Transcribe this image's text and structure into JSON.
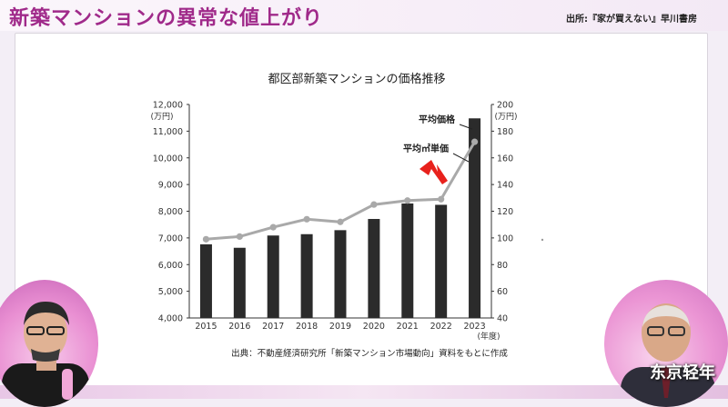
{
  "header": {
    "title": "新築マンションの異常な値上がり",
    "source_top": "出所:『家が買えない』早川書房"
  },
  "watermark": "东京轻年",
  "chart_data": {
    "type": "bar",
    "title": "都区部新築マンションの価格推移",
    "categories": [
      "2015",
      "2016",
      "2017",
      "2018",
      "2019",
      "2020",
      "2021",
      "2022",
      "2023"
    ],
    "xlabel": "(年度)",
    "series": [
      {
        "name": "平均価格",
        "type": "bar",
        "axis": "left",
        "values": [
          6760,
          6630,
          7090,
          7140,
          7290,
          7710,
          8290,
          8240,
          11480
        ],
        "color": "#2b2b2b"
      },
      {
        "name": "平均㎡単価",
        "type": "line",
        "axis": "right",
        "values": [
          99,
          101,
          108,
          114,
          112,
          125,
          128,
          129,
          172
        ],
        "color": "#a9a9a9"
      }
    ],
    "left_axis": {
      "unit": "(万円)",
      "ylim": [
        4000,
        12000
      ],
      "ticks": [
        "4,000",
        "5,000",
        "6,000",
        "7,000",
        "8,000",
        "9,000",
        "10,000",
        "11,000",
        "12,000"
      ]
    },
    "right_axis": {
      "unit": "(万円)",
      "ylim": [
        40,
        200
      ],
      "ticks": [
        "40",
        "60",
        "80",
        "100",
        "120",
        "140",
        "160",
        "180",
        "200"
      ]
    },
    "annotations": {
      "price_label": "平均価格",
      "unit_price_label": "平均㎡単価",
      "arrow_color": "#e8211c"
    },
    "source": "出典：不動産経済研究所「新築マンション市場動向」資料をもとに作成",
    "grid": false
  }
}
